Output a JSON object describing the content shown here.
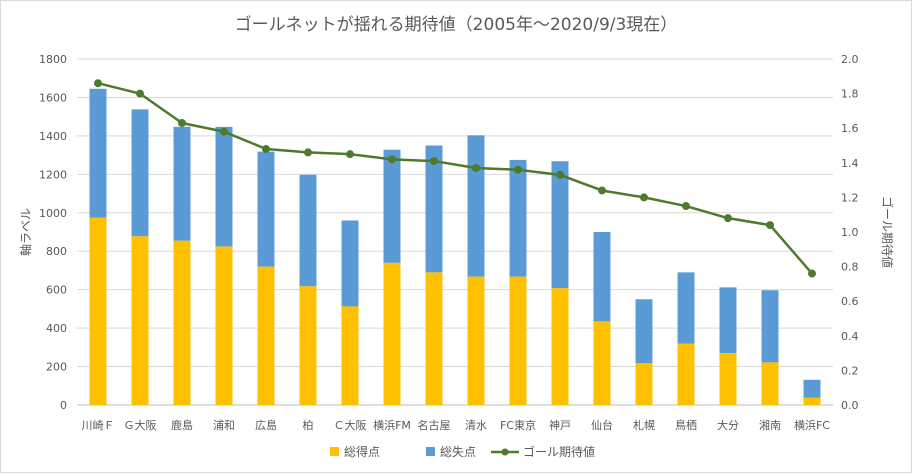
{
  "chart_data": {
    "type": "bar",
    "subtype": "stacked-bar-with-line-secondary-axis",
    "title": "ゴールネットが揺れる期待値（2005年～2020/9/3現在）",
    "ylabel": "軸ラベル",
    "y2label": "ゴール期待値",
    "xlabel": "",
    "ylim": [
      0,
      1800
    ],
    "yticks": [
      0,
      200,
      400,
      600,
      800,
      1000,
      1200,
      1400,
      1600,
      1800
    ],
    "y2lim": [
      0,
      2.0
    ],
    "y2ticks": [
      "0.0",
      "0.2",
      "0.4",
      "0.6",
      "0.8",
      "1.0",
      "1.2",
      "1.4",
      "1.6",
      "1.8",
      "2.0"
    ],
    "grid": true,
    "legend_position": "bottom",
    "categories": [
      "川崎Ｆ",
      "Ｇ大阪",
      "鹿島",
      "浦和",
      "広島",
      "柏",
      "Ｃ大阪",
      "横浜FM",
      "名古屋",
      "清水",
      "FC東京",
      "神戸",
      "仙台",
      "札幌",
      "鳥栖",
      "大分",
      "湘南",
      "横浜FC"
    ],
    "series": [
      {
        "name": "総得点",
        "kind": "bar",
        "color": "#FFC000",
        "values": [
          975,
          878,
          855,
          825,
          720,
          618,
          513,
          740,
          690,
          668,
          668,
          608,
          435,
          218,
          320,
          270,
          222,
          38
        ]
      },
      {
        "name": "総失点",
        "kind": "bar",
        "color": "#5B9BD5",
        "values": [
          670,
          660,
          592,
          622,
          598,
          580,
          447,
          588,
          660,
          735,
          607,
          660,
          465,
          332,
          370,
          342,
          375,
          93
        ]
      },
      {
        "name": "ゴール期待値",
        "kind": "line",
        "axis": "secondary",
        "color": "#4E7A2E",
        "values": [
          1.86,
          1.8,
          1.63,
          1.58,
          1.48,
          1.46,
          1.45,
          1.42,
          1.41,
          1.37,
          1.36,
          1.33,
          1.24,
          1.2,
          1.15,
          1.08,
          1.04,
          0.76
        ]
      }
    ]
  }
}
